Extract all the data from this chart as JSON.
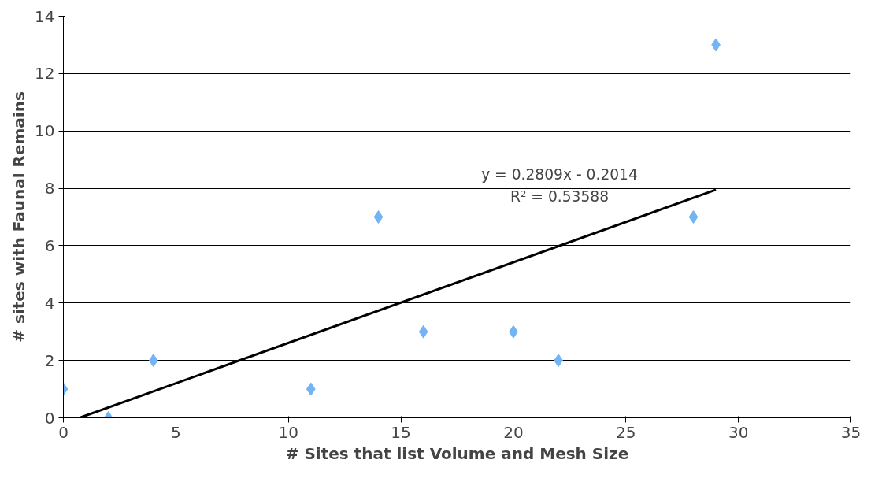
{
  "chart_data": {
    "type": "scatter",
    "xlabel": "# Sites that list Volume and Mesh Size",
    "ylabel": "# sites with Faunal Remains",
    "x": [
      0,
      2,
      4,
      11,
      14,
      16,
      20,
      22,
      28,
      29
    ],
    "series": [
      {
        "color": "#74b4f4",
        "values": [
          1,
          0,
          2,
          1,
          7,
          3,
          3,
          2,
          7,
          13
        ]
      },
      {
        "type": "line",
        "marker": "none",
        "color": "#000000",
        "x": [
          0.72,
          29
        ],
        "values": [
          0,
          7.95
        ]
      }
    ],
    "annotations": [
      "y = 0.2809x - 0.2014",
      "R² = 0.53588"
    ],
    "xlim": [
      0,
      35
    ],
    "ylim": [
      0,
      14
    ],
    "xticks": [
      0,
      5,
      10,
      15,
      20,
      25,
      30,
      35
    ],
    "yticks": [
      0,
      2,
      4,
      6,
      8,
      10,
      12,
      14
    ],
    "grid": "y",
    "marker": "diamond",
    "line_style": "solid"
  }
}
